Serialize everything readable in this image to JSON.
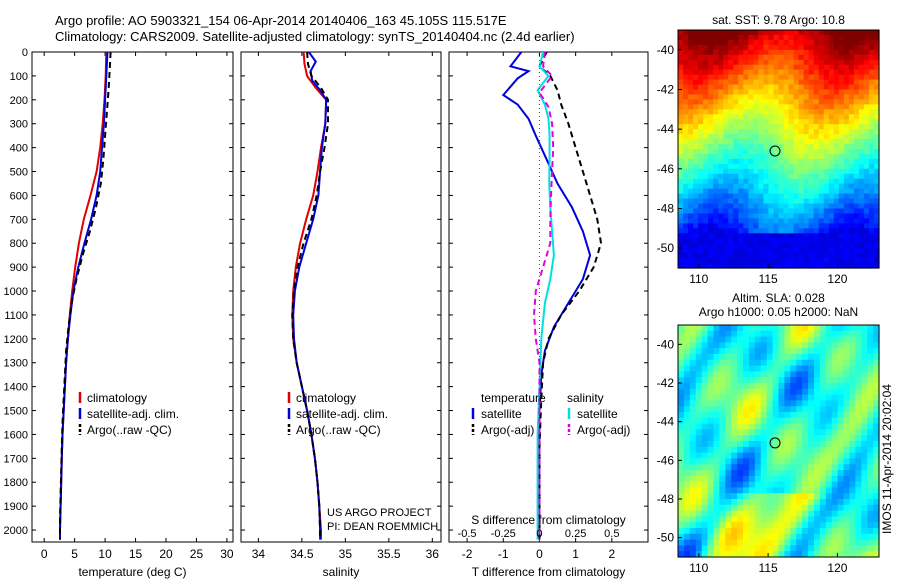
{
  "header": {
    "title_line1": "Argo profile: AO 5903321_154 06-Apr-2014 20140406_163 45.105S 115.517E",
    "title_line2": "Climatology: CARS2009. Satellite-adjusted climatology: synTS_20140404.nc (2.4d earlier)"
  },
  "chart_data": [
    {
      "type": "line",
      "xlabel": "temperature (deg C)",
      "ylabel": "",
      "xlim": [
        -2,
        31
      ],
      "ylim": [
        2050,
        0
      ],
      "xticks": [
        "0",
        "5",
        "10",
        "15",
        "20",
        "25",
        "30"
      ],
      "yticks": [
        "0",
        "100",
        "200",
        "300",
        "400",
        "500",
        "600",
        "700",
        "800",
        "900",
        "1000",
        "1100",
        "1200",
        "1300",
        "1400",
        "1500",
        "1600",
        "1700",
        "1800",
        "1900",
        "2000"
      ],
      "legend": [
        "climatology",
        "satellite-adj. clim.",
        "Argo(..raw -QC)"
      ],
      "legend_placement": "lower-center",
      "series": [
        {
          "name": "climatology",
          "color": "#e00000",
          "points": [
            [
              10.2,
              0
            ],
            [
              10.1,
              100
            ],
            [
              9.9,
              200
            ],
            [
              9.6,
              300
            ],
            [
              9.2,
              400
            ],
            [
              8.6,
              500
            ],
            [
              7.6,
              600
            ],
            [
              6.5,
              700
            ],
            [
              5.7,
              800
            ],
            [
              5.1,
              900
            ],
            [
              4.6,
              1000
            ],
            [
              4.2,
              1100
            ],
            [
              3.9,
              1200
            ],
            [
              3.6,
              1300
            ],
            [
              3.4,
              1400
            ],
            [
              3.2,
              1500
            ],
            [
              3.0,
              1600
            ],
            [
              2.9,
              1700
            ],
            [
              2.8,
              1800
            ],
            [
              2.7,
              1900
            ],
            [
              2.6,
              2000
            ],
            [
              2.6,
              2040
            ]
          ]
        },
        {
          "name": "satellite-adj. clim.",
          "color": "#0000dd",
          "points": [
            [
              10.4,
              0
            ],
            [
              10.2,
              100
            ],
            [
              10.0,
              200
            ],
            [
              9.8,
              300
            ],
            [
              9.5,
              400
            ],
            [
              9.2,
              500
            ],
            [
              8.6,
              600
            ],
            [
              7.7,
              700
            ],
            [
              6.6,
              800
            ],
            [
              5.6,
              900
            ],
            [
              4.8,
              1000
            ],
            [
              4.3,
              1100
            ],
            [
              3.9,
              1200
            ],
            [
              3.6,
              1300
            ],
            [
              3.4,
              1400
            ],
            [
              3.2,
              1500
            ],
            [
              3.0,
              1600
            ],
            [
              2.9,
              1700
            ],
            [
              2.8,
              1800
            ],
            [
              2.7,
              1900
            ],
            [
              2.6,
              2000
            ],
            [
              2.6,
              2040
            ]
          ]
        },
        {
          "name": "Argo(..raw -QC)",
          "color": "#000000",
          "dashed": true,
          "points": [
            [
              10.9,
              0
            ],
            [
              10.8,
              50
            ],
            [
              10.6,
              150
            ],
            [
              10.3,
              250
            ],
            [
              10.0,
              350
            ],
            [
              9.7,
              450
            ],
            [
              9.3,
              550
            ],
            [
              8.5,
              650
            ],
            [
              7.5,
              750
            ],
            [
              6.3,
              850
            ],
            [
              5.3,
              950
            ],
            [
              4.5,
              1050
            ],
            [
              4.0,
              1150
            ],
            [
              3.6,
              1250
            ],
            [
              3.4,
              1350
            ],
            [
              3.2,
              1450
            ],
            [
              3.0,
              1550
            ],
            [
              2.9,
              1650
            ],
            [
              2.8,
              1750
            ],
            [
              2.7,
              1850
            ],
            [
              2.6,
              1950
            ],
            [
              2.6,
              2040
            ]
          ]
        }
      ]
    },
    {
      "type": "line",
      "xlabel": "salinity",
      "ylabel": "",
      "xlim": [
        33.8,
        36.1
      ],
      "ylim": [
        2050,
        0
      ],
      "xticks": [
        "34",
        "34.5",
        "35",
        "35.5",
        "36"
      ],
      "legend": [
        "climatology",
        "satellite-adj. clim.",
        "Argo(..raw -QC)"
      ],
      "legend_placement": "lower-center",
      "annotations": [
        "US ARGO PROJECT",
        "PI: DEAN ROEMMICH"
      ],
      "series": [
        {
          "name": "climatology",
          "color": "#e00000",
          "points": [
            [
              34.52,
              0
            ],
            [
              34.53,
              50
            ],
            [
              34.56,
              100
            ],
            [
              34.66,
              150
            ],
            [
              34.78,
              200
            ],
            [
              34.77,
              300
            ],
            [
              34.72,
              400
            ],
            [
              34.68,
              500
            ],
            [
              34.63,
              600
            ],
            [
              34.55,
              700
            ],
            [
              34.48,
              800
            ],
            [
              34.43,
              900
            ],
            [
              34.4,
              1000
            ],
            [
              34.39,
              1100
            ],
            [
              34.4,
              1200
            ],
            [
              34.44,
              1300
            ],
            [
              34.5,
              1400
            ],
            [
              34.56,
              1500
            ],
            [
              34.61,
              1600
            ],
            [
              34.65,
              1700
            ],
            [
              34.68,
              1800
            ],
            [
              34.7,
              1900
            ],
            [
              34.72,
              2000
            ],
            [
              34.72,
              2040
            ]
          ]
        },
        {
          "name": "satellite-adj. clim.",
          "color": "#0000dd",
          "points": [
            [
              34.58,
              0
            ],
            [
              34.66,
              40
            ],
            [
              34.6,
              80
            ],
            [
              34.62,
              120
            ],
            [
              34.71,
              160
            ],
            [
              34.78,
              200
            ],
            [
              34.77,
              300
            ],
            [
              34.73,
              400
            ],
            [
              34.71,
              500
            ],
            [
              34.69,
              600
            ],
            [
              34.63,
              700
            ],
            [
              34.55,
              800
            ],
            [
              34.47,
              900
            ],
            [
              34.42,
              1000
            ],
            [
              34.4,
              1100
            ],
            [
              34.41,
              1200
            ],
            [
              34.44,
              1300
            ],
            [
              34.5,
              1400
            ],
            [
              34.56,
              1500
            ],
            [
              34.61,
              1600
            ],
            [
              34.65,
              1700
            ],
            [
              34.68,
              1800
            ],
            [
              34.7,
              1900
            ],
            [
              34.71,
              2000
            ],
            [
              34.71,
              2040
            ]
          ]
        },
        {
          "name": "Argo(..raw -QC)",
          "color": "#000000",
          "dashed": true,
          "points": [
            [
              34.56,
              0
            ],
            [
              34.57,
              50
            ],
            [
              34.61,
              100
            ],
            [
              34.72,
              150
            ],
            [
              34.8,
              200
            ],
            [
              34.8,
              300
            ],
            [
              34.76,
              400
            ],
            [
              34.71,
              500
            ],
            [
              34.67,
              600
            ],
            [
              34.61,
              700
            ],
            [
              34.52,
              800
            ],
            [
              34.45,
              900
            ],
            [
              34.41,
              1000
            ],
            [
              34.39,
              1100
            ],
            [
              34.4,
              1200
            ],
            [
              34.44,
              1300
            ],
            [
              34.5,
              1400
            ],
            [
              34.56,
              1500
            ],
            [
              34.61,
              1600
            ],
            [
              34.65,
              1700
            ],
            [
              34.68,
              1800
            ],
            [
              34.7,
              1900
            ],
            [
              34.71,
              2000
            ],
            [
              34.71,
              2040
            ]
          ]
        }
      ]
    },
    {
      "type": "line",
      "xlabel": "T difference from climatology",
      "xlabel_top": "S difference from climatology",
      "ylabel": "",
      "xlim": [
        -2.5,
        3
      ],
      "ylim": [
        2050,
        0
      ],
      "xticks": [
        "-2",
        "-1",
        "0",
        "1",
        "2"
      ],
      "xticks_top": [
        "-0.5",
        "-0.25",
        "0",
        "0.25",
        "0.5"
      ],
      "legend_headers": [
        "temperature",
        "salinity"
      ],
      "legend": [
        "satellite",
        "Argo(-adj)",
        "satellite",
        "Argo(-adj)"
      ],
      "legend_placement": "lower-center",
      "series": [
        {
          "name": "satellite",
          "group": "temperature",
          "color": "#0000dd",
          "points": [
            [
              -0.5,
              0
            ],
            [
              -0.8,
              60
            ],
            [
              -0.3,
              80
            ],
            [
              -0.6,
              110
            ],
            [
              -1.0,
              180
            ],
            [
              -0.6,
              220
            ],
            [
              -0.3,
              280
            ],
            [
              -0.1,
              350
            ],
            [
              0.2,
              450
            ],
            [
              0.5,
              550
            ],
            [
              0.9,
              650
            ],
            [
              1.2,
              750
            ],
            [
              1.4,
              850
            ],
            [
              1.2,
              950
            ],
            [
              0.8,
              1050
            ],
            [
              0.4,
              1150
            ],
            [
              0.15,
              1250
            ],
            [
              0.05,
              1350
            ],
            [
              0.0,
              1500
            ],
            [
              0.0,
              1700
            ],
            [
              0.0,
              1900
            ],
            [
              0.0,
              2040
            ]
          ]
        },
        {
          "name": "Argo(-adj)",
          "group": "temperature",
          "color": "#000000",
          "dashed": true,
          "points": [
            [
              0.2,
              0
            ],
            [
              0.0,
              60
            ],
            [
              0.3,
              100
            ],
            [
              0.5,
              160
            ],
            [
              0.6,
              220
            ],
            [
              0.8,
              300
            ],
            [
              1.0,
              400
            ],
            [
              1.2,
              500
            ],
            [
              1.4,
              600
            ],
            [
              1.6,
              700
            ],
            [
              1.7,
              800
            ],
            [
              1.5,
              900
            ],
            [
              1.1,
              1000
            ],
            [
              0.6,
              1100
            ],
            [
              0.25,
              1200
            ],
            [
              0.1,
              1300
            ],
            [
              0.05,
              1450
            ],
            [
              0.0,
              1650
            ],
            [
              0.0,
              1850
            ],
            [
              0.0,
              2040
            ]
          ]
        },
        {
          "name": "satellite",
          "group": "salinity",
          "color": "#00e0e0",
          "points": [
            [
              0.1,
              0
            ],
            [
              0.0,
              60
            ],
            [
              0.25,
              100
            ],
            [
              -0.05,
              160
            ],
            [
              0.15,
              220
            ],
            [
              0.25,
              280
            ],
            [
              0.28,
              350
            ],
            [
              0.28,
              450
            ],
            [
              0.27,
              550
            ],
            [
              0.3,
              650
            ],
            [
              0.35,
              750
            ],
            [
              0.4,
              850
            ],
            [
              0.3,
              950
            ],
            [
              0.15,
              1050
            ],
            [
              0.05,
              1200
            ],
            [
              0.0,
              1400
            ],
            [
              -0.05,
              1600
            ],
            [
              -0.05,
              1800
            ],
            [
              -0.05,
              2040
            ]
          ]
        },
        {
          "name": "Argo(-adj)",
          "group": "salinity",
          "color": "#e000e0",
          "dashed": true,
          "points": [
            [
              0.15,
              0
            ],
            [
              0.1,
              60
            ],
            [
              0.35,
              100
            ],
            [
              0.0,
              170
            ],
            [
              0.25,
              230
            ],
            [
              0.35,
              300
            ],
            [
              0.38,
              400
            ],
            [
              0.35,
              500
            ],
            [
              0.32,
              600
            ],
            [
              0.3,
              700
            ],
            [
              0.3,
              800
            ],
            [
              0.1,
              900
            ],
            [
              -0.1,
              1000
            ],
            [
              -0.15,
              1100
            ],
            [
              -0.1,
              1200
            ],
            [
              0.0,
              1300
            ],
            [
              0.0,
              1500
            ],
            [
              0.0,
              1700
            ],
            [
              0.0,
              2040
            ]
          ]
        }
      ]
    },
    {
      "type": "heatmap",
      "title": "sat. SST: 9.78 Argo: 10.8",
      "xlim": [
        108.5,
        123
      ],
      "ylim": [
        -51,
        -39
      ],
      "xticks": [
        "110",
        "115",
        "120"
      ],
      "yticks": [
        "-40",
        "-42",
        "-44",
        "-46",
        "-48",
        "-50"
      ],
      "marker": [
        115.5,
        -45.1
      ],
      "colormap": "jet"
    },
    {
      "type": "heatmap",
      "title_line1": "Altim. SLA: 0.028",
      "title_line2": "Argo h1000: 0.05 h2000: NaN",
      "xlim": [
        108.5,
        123
      ],
      "ylim": [
        -51,
        -39
      ],
      "xticks": [
        "110",
        "115",
        "120"
      ],
      "yticks": [
        "-40",
        "-42",
        "-44",
        "-46",
        "-48",
        "-50"
      ],
      "marker": [
        115.5,
        -45.1
      ],
      "colormap": "jet",
      "side_label": "IMOS 11-Apr-2014 20:02:04"
    }
  ]
}
